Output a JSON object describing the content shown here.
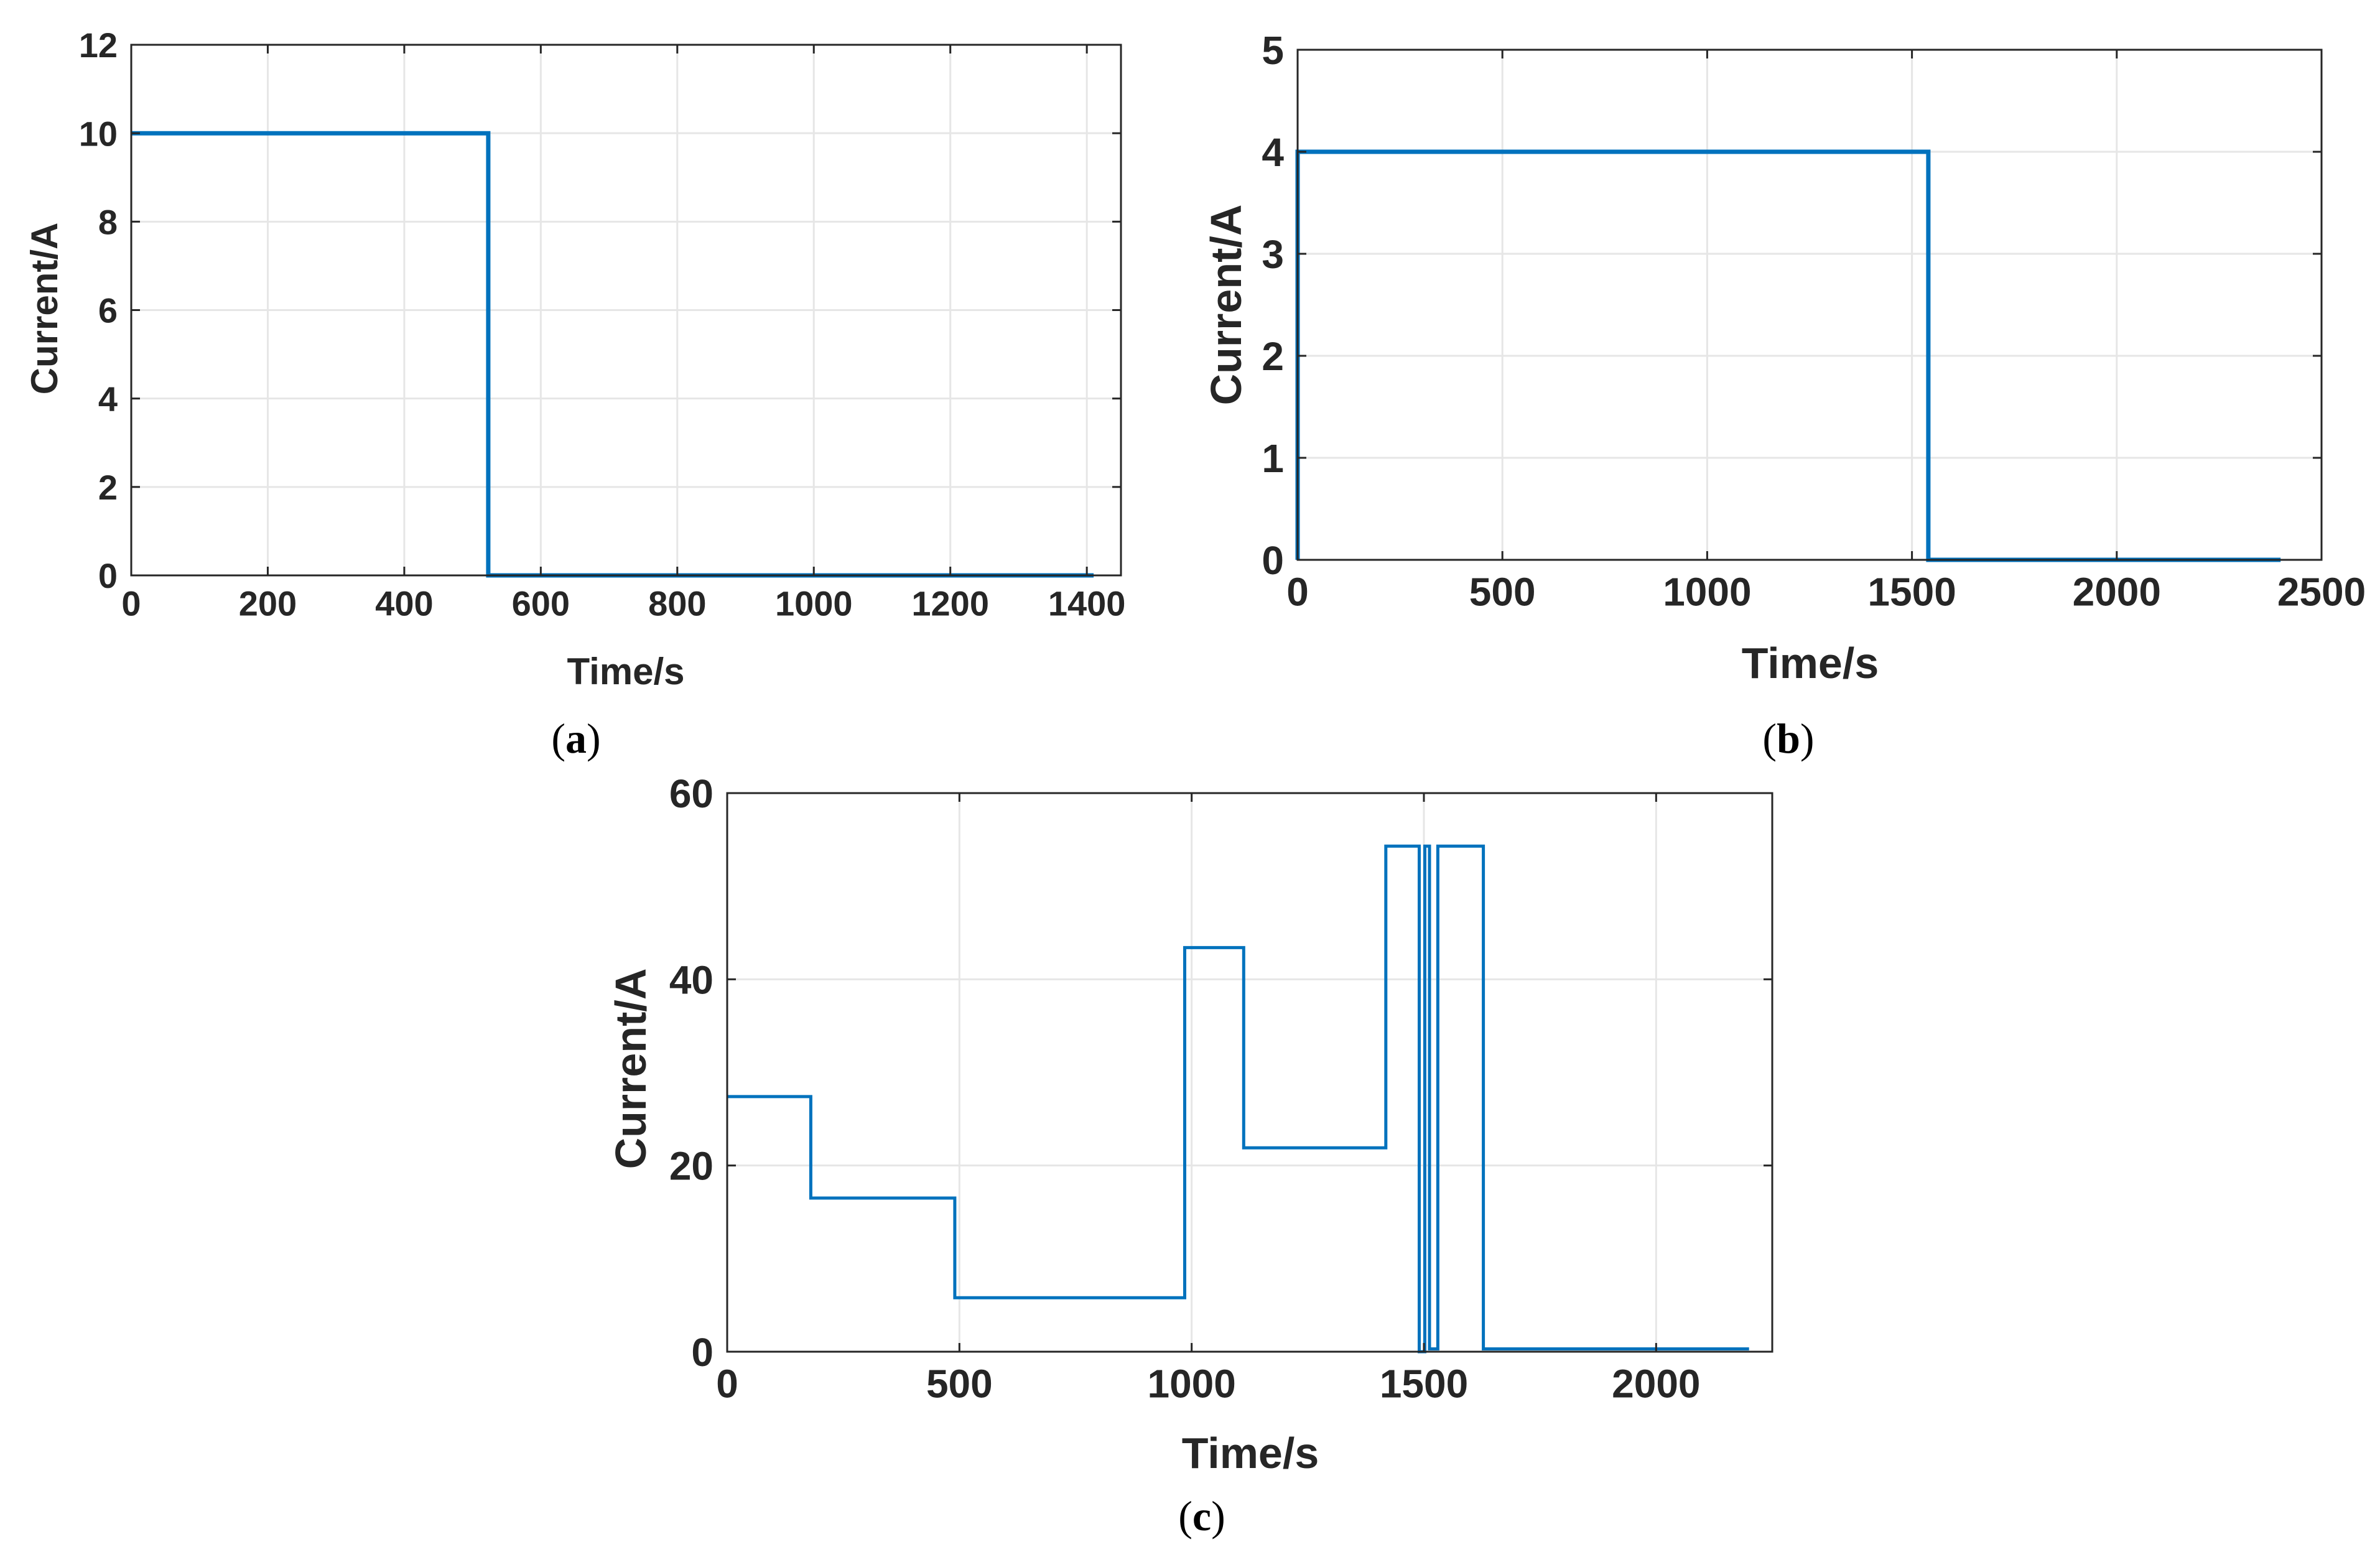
{
  "colors": {
    "line": "#0072BD",
    "grid": "#e6e6e6",
    "axis": "#262626",
    "background": "#ffffff"
  },
  "chart_data": [
    {
      "id": "a",
      "type": "line",
      "caption_letter": "a",
      "xlabel": "Time/s",
      "ylabel": "Current/A",
      "xlim": [
        0,
        1450
      ],
      "ylim": [
        0,
        12
      ],
      "xticks": [
        0,
        200,
        400,
        600,
        800,
        1000,
        1200,
        1400
      ],
      "yticks": [
        0,
        2,
        4,
        6,
        8,
        10,
        12
      ],
      "grid": true,
      "series": [
        {
          "name": "current",
          "x": [
            0,
            523,
            523,
            1410
          ],
          "y": [
            10,
            10,
            0,
            0
          ]
        }
      ]
    },
    {
      "id": "b",
      "type": "line",
      "caption_letter": "b",
      "xlabel": "Time/s",
      "ylabel": "Current/A",
      "xlim": [
        0,
        2500
      ],
      "ylim": [
        0,
        5
      ],
      "xticks": [
        0,
        500,
        1000,
        1500,
        2000,
        2500
      ],
      "yticks": [
        0,
        1,
        2,
        3,
        4,
        5
      ],
      "grid": true,
      "series": [
        {
          "name": "current",
          "x": [
            0,
            0,
            1540,
            1540,
            2400
          ],
          "y": [
            0,
            4,
            4,
            0,
            0
          ]
        }
      ]
    },
    {
      "id": "c",
      "type": "line",
      "caption_letter": "c",
      "xlabel": "Time/s",
      "ylabel": "Current/A",
      "xlim": [
        0,
        2250
      ],
      "ylim": [
        0,
        60
      ],
      "xticks": [
        0,
        500,
        1000,
        1500,
        2000
      ],
      "yticks": [
        0,
        20,
        40,
        60
      ],
      "grid": true,
      "series": [
        {
          "name": "current",
          "x": [
            0,
            180,
            180,
            490,
            490,
            985,
            985,
            1112,
            1112,
            1418,
            1418,
            1490,
            1490,
            1502,
            1502,
            1512,
            1512,
            1530,
            1530,
            1628,
            1628,
            2200
          ],
          "y": [
            27.4,
            27.4,
            16.5,
            16.5,
            5.8,
            5.8,
            43.4,
            43.4,
            21.9,
            21.9,
            54.3,
            54.3,
            0,
            0,
            54.3,
            54.3,
            0.3,
            0.3,
            54.3,
            54.3,
            0.3,
            0.3
          ]
        }
      ]
    }
  ]
}
